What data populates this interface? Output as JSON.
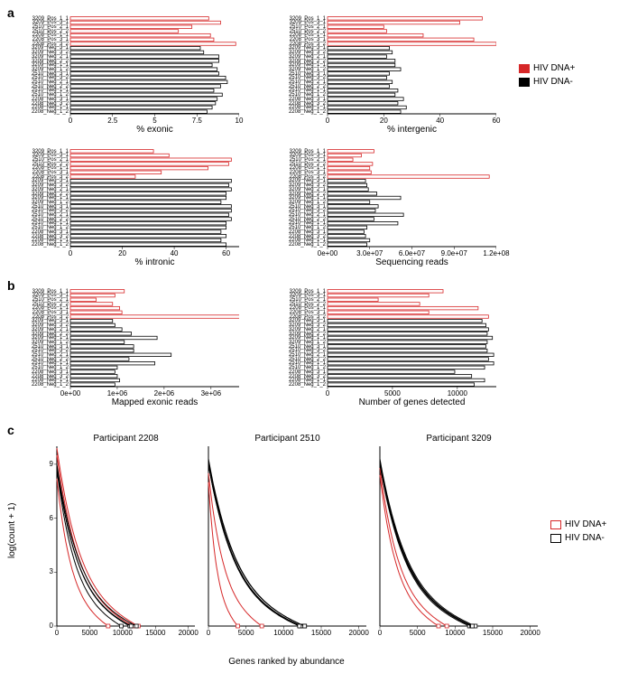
{
  "figure_width": 686,
  "figure_height": 766,
  "colors": {
    "pos_stroke": "#d62728",
    "neg_stroke": "#000000",
    "bar_fill": "#ffffff",
    "background": "#ffffff",
    "axis": "#000000"
  },
  "sample_labels": [
    "3209_Pos_1_1",
    "3209_Pos_3_1",
    "2510_Pos_2_1",
    "2510_Pos_2_2",
    "2208_Pos_1_1",
    "2208_Pos_3_1",
    "2208_Pos_3_2",
    "3209_Neg_3_1",
    "3209_Neg_3_2",
    "3209_Neg_2_1",
    "3209_Neg_2_2",
    "3209_Neg_1_1",
    "3209_Neg_1_2",
    "2510_Neg_3_1",
    "2510_Neg_3_2",
    "2510_Neg_2_1",
    "2510_Neg_2_2",
    "2510_Neg_1_1",
    "2510_Neg_1_2",
    "2208_Neg_3_1",
    "2208_Neg_3_2",
    "2208_Neg_1_1",
    "2208_Neg_1_2"
  ],
  "pos_count": 7,
  "legend": {
    "pos_label": "HIV DNA+",
    "neg_label": "HIV DNA-"
  },
  "panels": {
    "a": {
      "label": "a",
      "exonic": {
        "title": "% exonic",
        "xmin": 0,
        "xmax": 10,
        "xticks": [
          0.0,
          2.5,
          5.0,
          7.5,
          10.0
        ],
        "values": [
          8.2,
          8.9,
          7.2,
          6.4,
          8.3,
          8.5,
          9.8,
          7.7,
          7.9,
          8.8,
          8.8,
          8.4,
          8.7,
          8.8,
          9.2,
          9.3,
          8.9,
          8.5,
          9.0,
          8.7,
          8.6,
          8.4,
          8.1
        ]
      },
      "intergenic": {
        "title": "% intergenic",
        "xmin": 0,
        "xmax": 60,
        "xticks": [
          0,
          20,
          40,
          60
        ],
        "values": [
          55,
          47,
          20,
          21,
          34,
          52,
          60,
          22,
          23,
          21,
          24,
          24,
          26,
          22,
          21,
          23,
          22,
          25,
          24,
          27,
          25,
          28,
          26
        ]
      },
      "intronic": {
        "title": "% intronic",
        "xmin": 0,
        "xmax": 65,
        "xticks": [
          0,
          20,
          40,
          60
        ],
        "values": [
          32,
          38,
          62,
          61,
          53,
          35,
          25,
          62,
          61,
          62,
          60,
          60,
          58,
          62,
          62,
          61,
          62,
          60,
          60,
          58,
          60,
          58,
          60
        ]
      },
      "seqreads": {
        "title": "Sequencing reads",
        "xmin": 0,
        "xmax": 120000000.0,
        "xticks": [
          "0e+00",
          "3.0e+07",
          "6.0e+07",
          "9.0e+07",
          "1.2e+08"
        ],
        "xtick_vals": [
          0,
          30000000.0,
          60000000.0,
          90000000.0,
          120000000.0
        ],
        "values": [
          33000000.0,
          24000000.0,
          18000000.0,
          32000000.0,
          30000000.0,
          31000000.0,
          115000000.0,
          27000000.0,
          28000000.0,
          29000000.0,
          35000000.0,
          52000000.0,
          30000000.0,
          36000000.0,
          34000000.0,
          54000000.0,
          33000000.0,
          50000000.0,
          28000000.0,
          26000000.0,
          27000000.0,
          30000000.0,
          28000000.0
        ]
      }
    },
    "b": {
      "label": "b",
      "mapped": {
        "title": "Mapped exonic reads",
        "xmin": 0,
        "xmax": 3600000.0,
        "xticks": [
          "0e+00",
          "1e+06",
          "2e+06",
          "3e+06"
        ],
        "xtick_vals": [
          0,
          1000000.0,
          2000000.0,
          3000000.0
        ],
        "values": [
          1150000.0,
          950000.0,
          550000.0,
          900000.0,
          1050000.0,
          1100000.0,
          3750000.0,
          900000.0,
          950000.0,
          1100000.0,
          1300000.0,
          1850000.0,
          1150000.0,
          1350000.0,
          1350000.0,
          2150000.0,
          1250000.0,
          1800000.0,
          1000000.0,
          950000.0,
          1000000.0,
          1050000.0,
          950000.0
        ]
      },
      "genes": {
        "title": "Number of genes detected",
        "xmin": 0,
        "xmax": 13000,
        "xticks": [
          0,
          5000,
          10000
        ],
        "values": [
          8900,
          7800,
          3900,
          7100,
          11600,
          7800,
          12400,
          11900,
          12200,
          12400,
          12300,
          12700,
          12300,
          12200,
          12300,
          12800,
          12400,
          12800,
          12100,
          9800,
          11100,
          12100,
          11300
        ]
      }
    },
    "c": {
      "label": "c",
      "y_label": "log(count + 1)",
      "x_label": "Genes ranked by abundance",
      "ymin": 0,
      "ymax": 10,
      "yticks": [
        0,
        3,
        6,
        9
      ],
      "xmin": 0,
      "xmax": 21000,
      "xticks": [
        0,
        5000,
        10000,
        15000,
        20000
      ],
      "subpanels": [
        {
          "title": "Participant 2208",
          "curves": [
            {
              "type": "pos",
              "end_rank": 11600,
              "start_y": 9.5
            },
            {
              "type": "pos",
              "end_rank": 7800,
              "start_y": 8.2
            },
            {
              "type": "pos",
              "end_rank": 12400,
              "start_y": 9.9
            },
            {
              "type": "neg",
              "end_rank": 9800,
              "start_y": 8.7
            },
            {
              "type": "neg",
              "end_rank": 11100,
              "start_y": 8.9
            },
            {
              "type": "neg",
              "end_rank": 12100,
              "start_y": 9.0
            },
            {
              "type": "neg",
              "end_rank": 11300,
              "start_y": 8.8
            }
          ]
        },
        {
          "title": "Participant 2510",
          "curves": [
            {
              "type": "pos",
              "end_rank": 3900,
              "start_y": 8.0
            },
            {
              "type": "pos",
              "end_rank": 7100,
              "start_y": 8.5
            },
            {
              "type": "neg",
              "end_rank": 12200,
              "start_y": 9.0
            },
            {
              "type": "neg",
              "end_rank": 12300,
              "start_y": 9.1
            },
            {
              "type": "neg",
              "end_rank": 12800,
              "start_y": 9.3
            },
            {
              "type": "neg",
              "end_rank": 12400,
              "start_y": 9.0
            },
            {
              "type": "neg",
              "end_rank": 12800,
              "start_y": 9.2
            },
            {
              "type": "neg",
              "end_rank": 12100,
              "start_y": 9.0
            }
          ]
        },
        {
          "title": "Participant 3209",
          "curves": [
            {
              "type": "pos",
              "end_rank": 8900,
              "start_y": 8.8
            },
            {
              "type": "pos",
              "end_rank": 7800,
              "start_y": 8.4
            },
            {
              "type": "neg",
              "end_rank": 11900,
              "start_y": 9.0
            },
            {
              "type": "neg",
              "end_rank": 12200,
              "start_y": 9.1
            },
            {
              "type": "neg",
              "end_rank": 12400,
              "start_y": 9.2
            },
            {
              "type": "neg",
              "end_rank": 12300,
              "start_y": 9.1
            },
            {
              "type": "neg",
              "end_rank": 12700,
              "start_y": 9.3
            },
            {
              "type": "neg",
              "end_rank": 12300,
              "start_y": 9.0
            }
          ]
        }
      ]
    }
  }
}
